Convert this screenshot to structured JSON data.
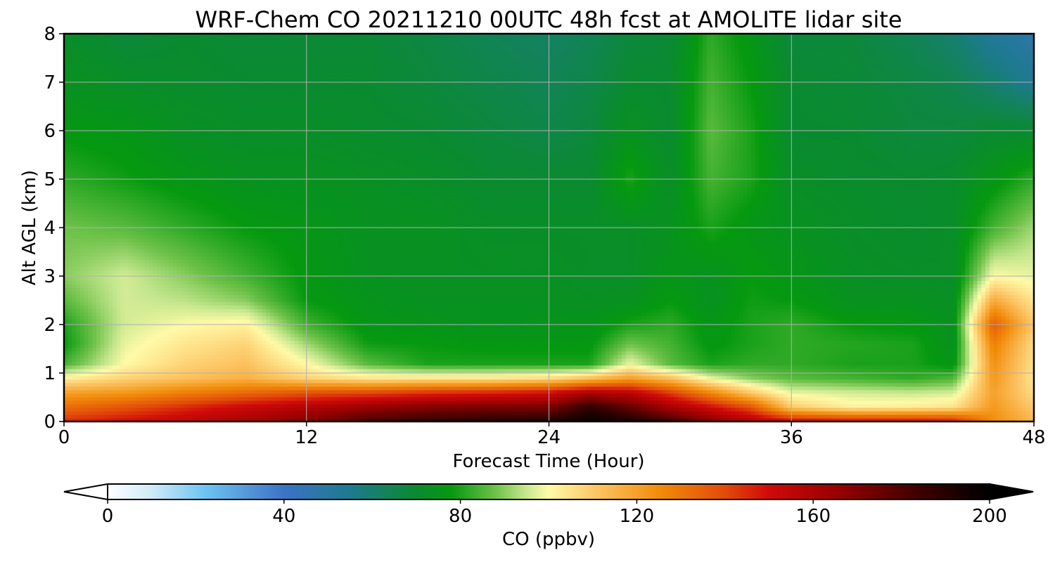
{
  "chart_data": {
    "type": "heatmap",
    "title": "WRF-Chem CO  20211210 00UTC 48h fcst at AMOLITE lidar site",
    "xlabel": "Forecast Time (Hour)",
    "ylabel": "Alt AGL (km)",
    "xlim": [
      0,
      48
    ],
    "ylim": [
      0,
      8
    ],
    "x_ticks": [
      0,
      12,
      24,
      36,
      48
    ],
    "y_ticks": [
      0,
      1,
      2,
      3,
      4,
      5,
      6,
      7,
      8
    ],
    "grid": true,
    "colorbar": {
      "label": "CO  (ppbv)",
      "range": [
        0,
        200
      ],
      "ticks": [
        0,
        40,
        80,
        120,
        160,
        200
      ],
      "extend": "both",
      "stops": [
        {
          "value": 0,
          "color": "#ffffff"
        },
        {
          "value": 10,
          "color": "#cfeaf8"
        },
        {
          "value": 22,
          "color": "#6ec4f2"
        },
        {
          "value": 40,
          "color": "#3c73c4"
        },
        {
          "value": 55,
          "color": "#1d7a8e"
        },
        {
          "value": 70,
          "color": "#0a8a30"
        },
        {
          "value": 78,
          "color": "#05990f"
        },
        {
          "value": 88,
          "color": "#6fc24a"
        },
        {
          "value": 95,
          "color": "#c8e890"
        },
        {
          "value": 100,
          "color": "#fffaa8"
        },
        {
          "value": 110,
          "color": "#fdc96a"
        },
        {
          "value": 125,
          "color": "#f28c0a"
        },
        {
          "value": 140,
          "color": "#e24a0a"
        },
        {
          "value": 150,
          "color": "#d00a0a"
        },
        {
          "value": 165,
          "color": "#9a0000"
        },
        {
          "value": 185,
          "color": "#3a0000"
        },
        {
          "value": 200,
          "color": "#000000"
        }
      ]
    },
    "field": {
      "description_units": "CO mixing ratio (ppbv); rows are altitude levels in km, columns are forecast hours",
      "x_hours": [
        0,
        3,
        6,
        9,
        12,
        15,
        18,
        21,
        24,
        26,
        28,
        30,
        32,
        34,
        36,
        39,
        42,
        44,
        46,
        48
      ],
      "z_km": [
        0,
        0.3,
        0.6,
        0.9,
        1.2,
        1.6,
        2.0,
        2.5,
        3.0,
        4.0,
        5.0,
        6.0,
        7.0,
        8.0
      ],
      "values": [
        [
          145,
          150,
          155,
          162,
          170,
          182,
          188,
          190,
          192,
          198,
          194,
          185,
          170,
          160,
          152,
          150,
          150,
          148,
          125,
          115
        ],
        [
          132,
          138,
          145,
          152,
          158,
          165,
          170,
          172,
          172,
          188,
          176,
          162,
          150,
          138,
          110,
          102,
          103,
          105,
          122,
          110
        ],
        [
          120,
          122,
          128,
          133,
          138,
          140,
          144,
          146,
          150,
          160,
          156,
          142,
          126,
          110,
          98,
          96,
          95,
          96,
          120,
          106
        ],
        [
          102,
          108,
          112,
          116,
          108,
          104,
          104,
          104,
          106,
          112,
          120,
          112,
          98,
          90,
          86,
          84,
          82,
          85,
          122,
          104
        ],
        [
          84,
          100,
          108,
          112,
          100,
          86,
          80,
          80,
          80,
          80,
          98,
          86,
          80,
          82,
          82,
          80,
          80,
          76,
          124,
          105
        ],
        [
          78,
          98,
          104,
          108,
          92,
          79,
          78,
          77,
          77,
          77,
          88,
          84,
          77,
          80,
          82,
          81,
          80,
          74,
          128,
          106
        ],
        [
          80,
          96,
          100,
          102,
          84,
          76,
          75,
          74,
          75,
          75,
          80,
          82,
          76,
          80,
          82,
          78,
          77,
          74,
          136,
          110
        ],
        [
          86,
          96,
          94,
          90,
          78,
          75,
          74,
          74,
          74,
          73,
          74,
          78,
          74,
          79,
          78,
          74,
          74,
          73,
          118,
          104
        ],
        [
          90,
          96,
          90,
          84,
          77,
          74,
          73,
          73,
          73,
          72,
          72,
          76,
          74,
          78,
          76,
          73,
          72,
          72,
          100,
          98
        ],
        [
          88,
          86,
          82,
          78,
          76,
          74,
          74,
          72,
          72,
          72,
          72,
          74,
          80,
          76,
          74,
          72,
          71,
          72,
          84,
          92
        ],
        [
          82,
          79,
          76,
          74,
          74,
          73,
          72,
          70,
          70,
          70,
          80,
          72,
          84,
          80,
          72,
          71,
          70,
          71,
          76,
          82
        ],
        [
          77,
          76,
          73,
          72,
          72,
          71,
          70,
          68,
          66,
          68,
          74,
          70,
          86,
          80,
          70,
          70,
          68,
          68,
          70,
          70
        ],
        [
          74,
          72,
          71,
          70,
          70,
          70,
          68,
          66,
          64,
          66,
          70,
          70,
          84,
          78,
          70,
          69,
          67,
          65,
          60,
          54
        ],
        [
          72,
          68,
          70,
          69,
          69,
          69,
          67,
          64,
          62,
          64,
          68,
          69,
          82,
          76,
          68,
          68,
          64,
          60,
          52,
          48
        ]
      ]
    }
  }
}
